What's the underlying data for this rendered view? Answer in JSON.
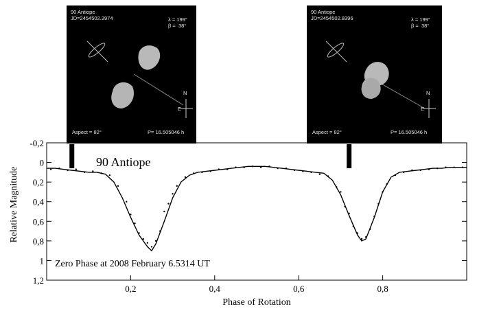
{
  "panels": [
    {
      "object": "90 Antiope",
      "jd": "JD=2454502.3974",
      "lambda": "λ = 199°",
      "beta": "β =  38°",
      "aspect": "Aspect = 82°",
      "period": "P= 16.505046 h",
      "north": "N",
      "east": "E"
    },
    {
      "object": "90 Antiope",
      "jd": "JD=2454502.8396",
      "lambda": "λ = 199°",
      "beta": "β =  38°",
      "aspect": "Aspect = 82°",
      "period": "P= 16.505046 h",
      "north": "N",
      "east": "E"
    }
  ],
  "chart_data": {
    "type": "scatter",
    "title": "90 Antiope",
    "annotation": "Zero Phase at 2008 February 6.5314 UT",
    "xlabel": "Phase of Rotation",
    "ylabel": "Relative Magnitude",
    "xlim": [
      0,
      1
    ],
    "ylim": [
      -0.2,
      1.2
    ],
    "y_inverted": true,
    "grid": false,
    "x_ticks": [
      {
        "value": 0.2,
        "label": "0,2"
      },
      {
        "value": 0.4,
        "label": "0,4"
      },
      {
        "value": 0.6,
        "label": "0,6"
      },
      {
        "value": 0.8,
        "label": "0,8"
      }
    ],
    "y_ticks": [
      {
        "value": -0.2,
        "label": "-0,2"
      },
      {
        "value": 0,
        "label": "0"
      },
      {
        "value": 0.2,
        "label": "0,2"
      },
      {
        "value": 0.4,
        "label": "0,4"
      },
      {
        "value": 0.6,
        "label": "0,6"
      },
      {
        "value": 0.8,
        "label": "0,8"
      },
      {
        "value": 1,
        "label": "1"
      },
      {
        "value": 1.2,
        "label": "1,2"
      }
    ],
    "phase_markers": [
      0.06,
      0.72
    ],
    "series": [
      {
        "kind": "model-curve",
        "x": [
          0.0,
          0.02,
          0.04,
          0.06,
          0.08,
          0.1,
          0.12,
          0.14,
          0.16,
          0.18,
          0.2,
          0.22,
          0.24,
          0.25,
          0.26,
          0.28,
          0.3,
          0.32,
          0.34,
          0.36,
          0.38,
          0.4,
          0.42,
          0.44,
          0.46,
          0.48,
          0.5,
          0.52,
          0.54,
          0.56,
          0.58,
          0.6,
          0.62,
          0.64,
          0.66,
          0.68,
          0.7,
          0.72,
          0.74,
          0.75,
          0.76,
          0.78,
          0.8,
          0.82,
          0.84,
          0.86,
          0.88,
          0.9,
          0.92,
          0.94,
          0.96,
          0.98,
          1.0
        ],
        "y": [
          0.06,
          0.06,
          0.07,
          0.08,
          0.09,
          0.1,
          0.1,
          0.12,
          0.2,
          0.36,
          0.56,
          0.74,
          0.86,
          0.9,
          0.83,
          0.6,
          0.36,
          0.2,
          0.13,
          0.1,
          0.09,
          0.08,
          0.07,
          0.06,
          0.05,
          0.04,
          0.04,
          0.04,
          0.05,
          0.06,
          0.07,
          0.08,
          0.09,
          0.1,
          0.11,
          0.18,
          0.33,
          0.54,
          0.74,
          0.8,
          0.78,
          0.56,
          0.3,
          0.15,
          0.1,
          0.09,
          0.08,
          0.07,
          0.06,
          0.06,
          0.05,
          0.05,
          0.05
        ]
      },
      {
        "kind": "observations",
        "x": [
          0.01,
          0.03,
          0.05,
          0.07,
          0.09,
          0.11,
          0.13,
          0.15,
          0.17,
          0.19,
          0.2,
          0.21,
          0.22,
          0.23,
          0.24,
          0.25,
          0.26,
          0.27,
          0.28,
          0.29,
          0.3,
          0.31,
          0.33,
          0.35,
          0.37,
          0.39,
          0.41,
          0.43,
          0.45,
          0.47,
          0.49,
          0.51,
          0.53,
          0.55,
          0.57,
          0.59,
          0.61,
          0.63,
          0.65,
          0.67,
          0.69,
          0.7,
          0.71,
          0.72,
          0.73,
          0.74,
          0.75,
          0.76,
          0.77,
          0.78,
          0.79,
          0.8,
          0.81,
          0.83,
          0.85,
          0.87,
          0.89,
          0.91,
          0.93,
          0.95,
          0.97,
          0.99
        ],
        "y": [
          0.07,
          0.06,
          0.08,
          0.07,
          0.1,
          0.09,
          0.11,
          0.13,
          0.24,
          0.4,
          0.53,
          0.62,
          0.72,
          0.78,
          0.82,
          0.86,
          0.8,
          0.7,
          0.5,
          0.42,
          0.32,
          0.24,
          0.15,
          0.11,
          0.1,
          0.09,
          0.07,
          0.07,
          0.05,
          0.05,
          0.04,
          0.05,
          0.04,
          0.06,
          0.06,
          0.08,
          0.09,
          0.1,
          0.12,
          0.14,
          0.25,
          0.3,
          0.45,
          0.52,
          0.65,
          0.72,
          0.78,
          0.76,
          0.68,
          0.55,
          0.42,
          0.3,
          0.22,
          0.13,
          0.1,
          0.08,
          0.08,
          0.07,
          0.06,
          0.05,
          0.05,
          0.05
        ]
      }
    ]
  }
}
